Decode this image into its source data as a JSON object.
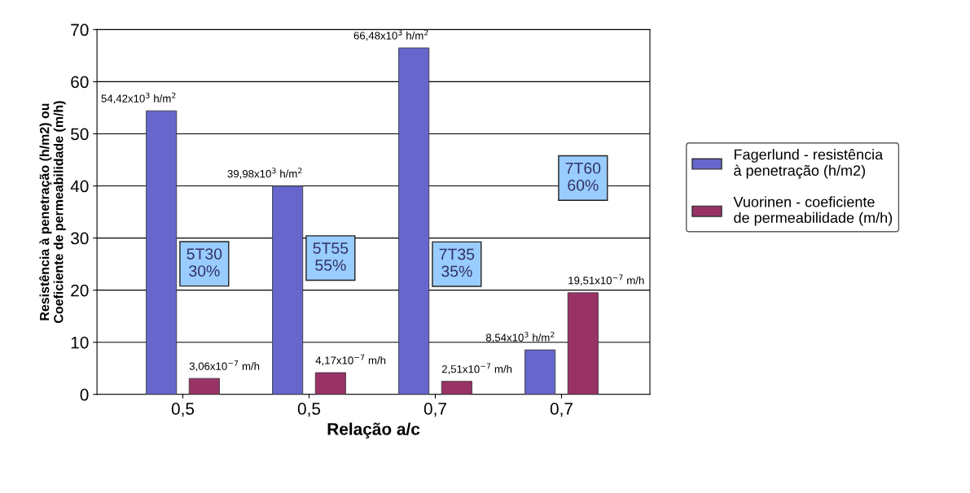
{
  "chart_data": {
    "type": "bar",
    "xlabel": "Relação a/c",
    "ylabel": "Resistência à penetração (h/m2) ou\nCoeficiente de permeabilidade (m/h)",
    "categories": [
      "0,5",
      "0,5",
      "0,7",
      "0,7"
    ],
    "series": [
      {
        "name": "Fagerlund - resistência à penetração (h/m2)",
        "color": "#6666cc",
        "values": [
          54.42,
          39.98,
          66.48,
          8.54
        ],
        "value_labels": [
          "54,42x10$^{3}$ h/m$^{2}$",
          "39,98x10$^{3}$ h/m$^{2}$",
          "66,48x10$^{3}$ h/m$^{2}$",
          "8,54x10$^{3}$ h/m$^{2}$"
        ]
      },
      {
        "name": "Vuorinen - coeficiente de permeabilidade (m/h)",
        "color": "#993366",
        "values": [
          3.06,
          4.17,
          2.51,
          19.51
        ],
        "value_labels": [
          "3,06x10$^{−7}$ m/h",
          "4,17x10$^{−7}$ m/h",
          "2,51x10$^{−7}$ m/h",
          "19,51x10$^{−7}$ m/h"
        ]
      }
    ],
    "annotations": [
      "5T30\n30%",
      "5T55\n55%",
      "7T35\n35%",
      "7T60\n60%"
    ],
    "ylim": [
      0,
      70
    ],
    "yticks": [
      0,
      10,
      20,
      30,
      40,
      50,
      60,
      70
    ],
    "grid": "y",
    "legend": "right"
  }
}
